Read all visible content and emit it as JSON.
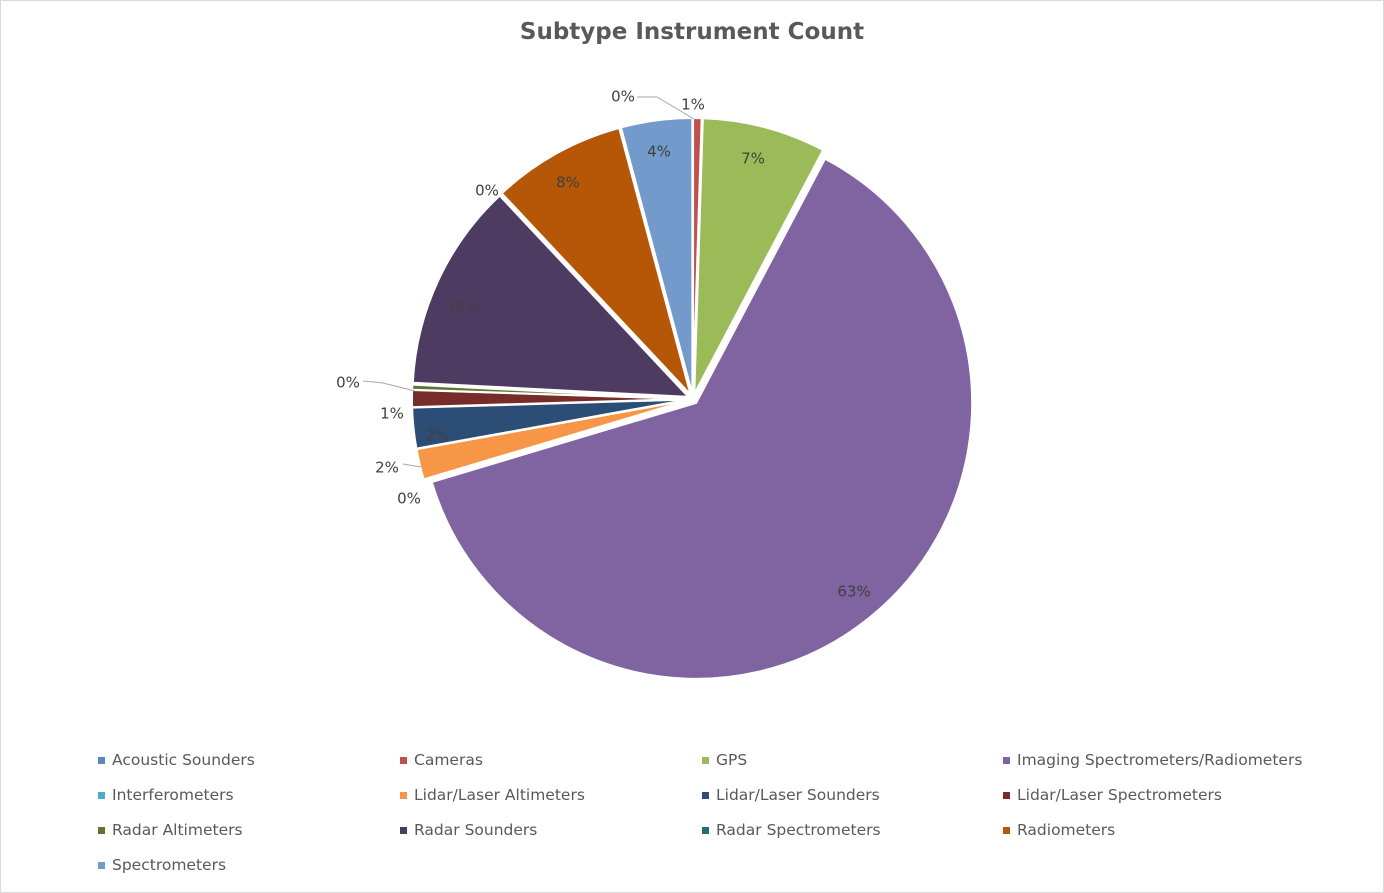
{
  "chart_data": {
    "type": "pie",
    "title": "Subtype Instrument Count",
    "legend_position": "bottom",
    "slices": [
      {
        "name": "Acoustic Sounders",
        "value": 0,
        "label": "0%",
        "color": "#5B87C5"
      },
      {
        "name": "Cameras",
        "value": 0.5,
        "label": "1%",
        "color": "#C0504D"
      },
      {
        "name": "GPS",
        "value": 7.3,
        "label": "7%",
        "color": "#9BBB59"
      },
      {
        "name": "Imaging Spectrometers/Radiometers",
        "value": 63.2,
        "label": "63%",
        "color": "#8064A2"
      },
      {
        "name": "Interferometers",
        "value": 0,
        "label": "0%",
        "color": "#4BACC6"
      },
      {
        "name": "Lidar/Laser Altimeters",
        "value": 1.8,
        "label": "2%",
        "color": "#F79646"
      },
      {
        "name": "Lidar/Laser Sounders",
        "value": 2.4,
        "label": "2%",
        "color": "#2C4D75"
      },
      {
        "name": "Lidar/Laser Spectrometers",
        "value": 1.0,
        "label": "1%",
        "color": "#772C2A"
      },
      {
        "name": "Radar Altimeters",
        "value": 0.3,
        "label": "0%",
        "color": "#5F7530"
      },
      {
        "name": "Radar Sounders",
        "value": 12.3,
        "label": "12%",
        "color": "#4D3B62"
      },
      {
        "name": "Radar Spectrometers",
        "value": 0,
        "label": "0%",
        "color": "#276A7C"
      },
      {
        "name": "Radiometers",
        "value": 7.9,
        "label": "8%",
        "color": "#B65708"
      },
      {
        "name": "Spectrometers",
        "value": 4.2,
        "label": "4%",
        "color": "#729ACA"
      }
    ]
  }
}
